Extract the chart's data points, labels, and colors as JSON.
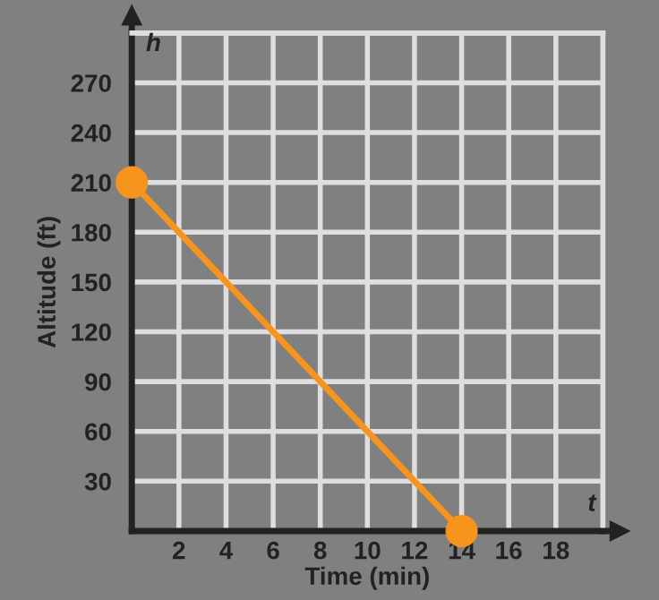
{
  "chart_data": {
    "type": "line",
    "xlabel": "Time (min)",
    "ylabel": "Altitude (ft)",
    "x": [
      0,
      14
    ],
    "series": [
      {
        "color": "#f7941d",
        "values": [
          210,
          0
        ]
      }
    ],
    "xlim": [
      0,
      20
    ],
    "ylim": [
      0,
      300
    ],
    "xticks": [
      2,
      4,
      6,
      8,
      10,
      12,
      14,
      16,
      18,
      {
        "value": 20,
        "label": null
      }
    ],
    "yticks": [
      30,
      60,
      90,
      120,
      150,
      180,
      210,
      240,
      270,
      {
        "value": 300,
        "label": null
      }
    ],
    "grid": true,
    "marker": "circle",
    "line_style": "solid",
    "annotations": [
      "h",
      "t"
    ]
  }
}
